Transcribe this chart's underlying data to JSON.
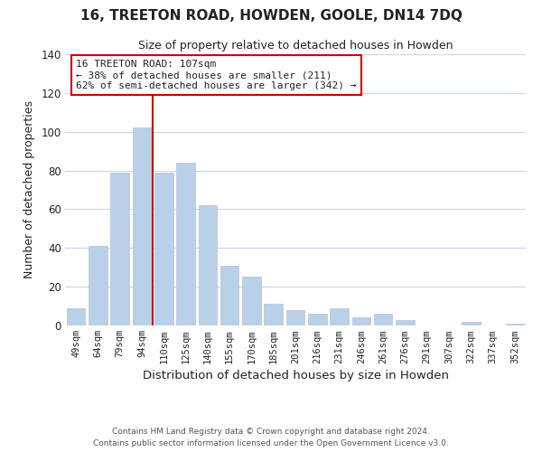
{
  "title": "16, TREETON ROAD, HOWDEN, GOOLE, DN14 7DQ",
  "subtitle": "Size of property relative to detached houses in Howden",
  "xlabel": "Distribution of detached houses by size in Howden",
  "ylabel": "Number of detached properties",
  "bar_labels": [
    "49sqm",
    "64sqm",
    "79sqm",
    "94sqm",
    "110sqm",
    "125sqm",
    "140sqm",
    "155sqm",
    "170sqm",
    "185sqm",
    "201sqm",
    "216sqm",
    "231sqm",
    "246sqm",
    "261sqm",
    "276sqm",
    "291sqm",
    "307sqm",
    "322sqm",
    "337sqm",
    "352sqm"
  ],
  "bar_values": [
    9,
    41,
    79,
    102,
    79,
    84,
    62,
    31,
    25,
    11,
    8,
    6,
    9,
    4,
    6,
    3,
    0,
    0,
    2,
    0,
    1
  ],
  "bar_color": "#b8d0e8",
  "bar_edge_color": "#c0c8d8",
  "vline_color": "#cc0000",
  "annotation_line1": "16 TREETON ROAD: 107sqm",
  "annotation_line2": "← 38% of detached houses are smaller (211)",
  "annotation_line3": "62% of semi-detached houses are larger (342) →",
  "annotation_box_edge": "#cc0000",
  "ylim": [
    0,
    140
  ],
  "yticks": [
    0,
    20,
    40,
    60,
    80,
    100,
    120,
    140
  ],
  "footer1": "Contains HM Land Registry data © Crown copyright and database right 2024.",
  "footer2": "Contains public sector information licensed under the Open Government Licence v3.0.",
  "background_color": "#ffffff",
  "grid_color": "#c8d8e8"
}
